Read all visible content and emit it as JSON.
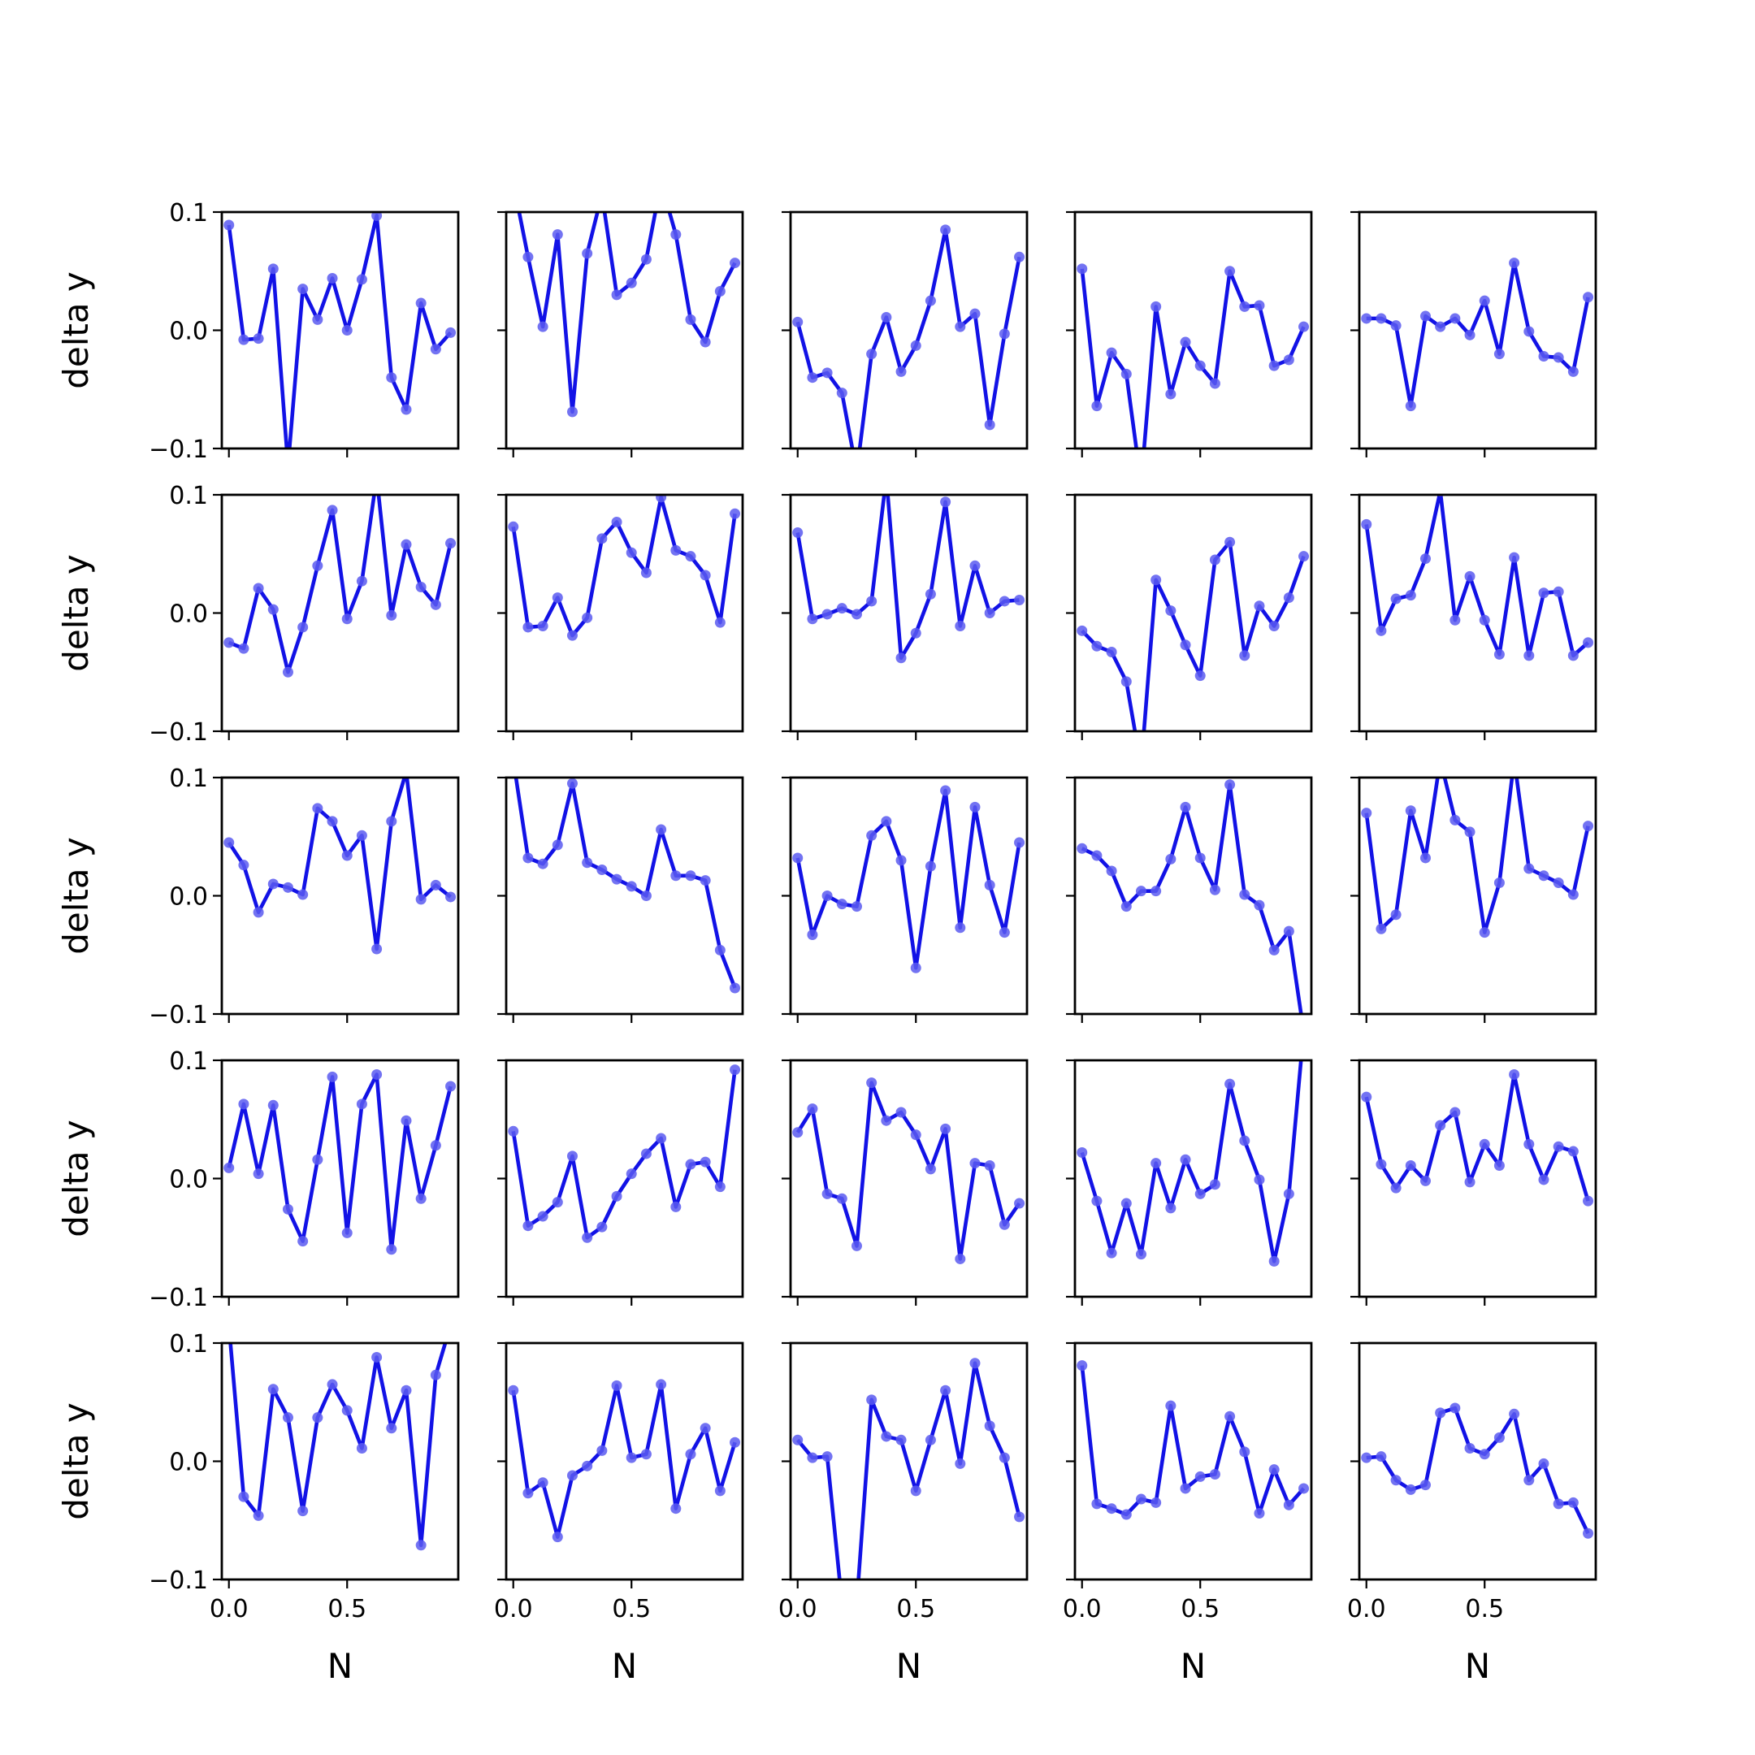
{
  "chart_data": {
    "type": "line",
    "layout": "5x5 grid of subplots",
    "xlabel": "N",
    "ylabel": "delta y",
    "xlim": [
      -0.03,
      0.97
    ],
    "ylim": [
      -0.1,
      0.1
    ],
    "xticks": [
      0.0,
      0.5
    ],
    "xtick_labels": [
      "0.0",
      "0.5"
    ],
    "yticks": [
      -0.1,
      0.0,
      0.1
    ],
    "ytick_labels": [
      "−0.1",
      "0.0",
      "0.1"
    ],
    "grid": false,
    "legend": false,
    "line_color": "#1212e6",
    "marker_color": "#5b5bf0",
    "x": [
      0.0,
      0.0625,
      0.125,
      0.1875,
      0.25,
      0.3125,
      0.375,
      0.4375,
      0.5,
      0.5625,
      0.625,
      0.6875,
      0.75,
      0.8125,
      0.875,
      0.9375
    ],
    "panels": [
      [
        0.089,
        -0.008,
        -0.007,
        0.052,
        -0.115,
        0.035,
        0.009,
        0.044,
        0.0,
        0.043,
        0.097,
        -0.04,
        -0.067,
        0.023,
        -0.016,
        -0.002
      ],
      [
        0.125,
        0.062,
        0.003,
        0.081,
        -0.069,
        0.065,
        0.115,
        0.03,
        0.04,
        0.06,
        0.125,
        0.081,
        0.009,
        -0.01,
        0.033,
        0.057
      ],
      [
        0.007,
        -0.04,
        -0.036,
        -0.053,
        -0.12,
        -0.02,
        0.011,
        -0.035,
        -0.013,
        0.025,
        0.085,
        0.003,
        0.014,
        -0.08,
        -0.003,
        0.062
      ],
      [
        0.052,
        -0.064,
        -0.019,
        -0.037,
        -0.13,
        0.02,
        -0.054,
        -0.01,
        -0.03,
        -0.045,
        0.05,
        0.02,
        0.021,
        -0.03,
        -0.025,
        0.003
      ],
      [
        0.01,
        0.01,
        0.004,
        -0.064,
        0.012,
        0.003,
        0.01,
        -0.004,
        0.025,
        -0.02,
        0.057,
        -0.001,
        -0.022,
        -0.023,
        -0.035,
        0.028
      ],
      [
        -0.025,
        -0.03,
        0.021,
        0.003,
        -0.05,
        -0.012,
        0.04,
        0.087,
        -0.005,
        0.027,
        0.115,
        -0.002,
        0.058,
        0.022,
        0.007,
        0.059
      ],
      [
        0.073,
        -0.012,
        -0.011,
        0.013,
        -0.019,
        -0.004,
        0.063,
        0.077,
        0.051,
        0.034,
        0.098,
        0.053,
        0.048,
        0.032,
        -0.008,
        0.084
      ],
      [
        0.068,
        -0.005,
        -0.001,
        0.004,
        -0.001,
        0.01,
        0.115,
        -0.038,
        -0.017,
        0.016,
        0.094,
        -0.011,
        0.04,
        0.0,
        0.01,
        0.011
      ],
      [
        -0.015,
        -0.028,
        -0.033,
        -0.058,
        -0.13,
        0.028,
        0.002,
        -0.027,
        -0.053,
        0.045,
        0.06,
        -0.036,
        0.006,
        -0.011,
        0.013,
        0.048
      ],
      [
        0.075,
        -0.015,
        0.012,
        0.015,
        0.046,
        0.103,
        -0.006,
        0.031,
        -0.006,
        -0.035,
        0.047,
        -0.036,
        0.017,
        0.018,
        -0.036,
        -0.025
      ],
      [
        0.045,
        0.026,
        -0.014,
        0.01,
        0.007,
        0.001,
        0.074,
        0.063,
        0.034,
        0.051,
        -0.045,
        0.063,
        0.105,
        -0.003,
        0.009,
        -0.001
      ],
      [
        0.115,
        0.032,
        0.027,
        0.043,
        0.095,
        0.028,
        0.022,
        0.014,
        0.008,
        0.0,
        0.056,
        0.017,
        0.017,
        0.013,
        -0.046,
        -0.078
      ],
      [
        0.032,
        -0.033,
        0.0,
        -0.007,
        -0.009,
        0.051,
        0.063,
        0.03,
        -0.061,
        0.025,
        0.089,
        -0.027,
        0.075,
        0.009,
        -0.031,
        0.045
      ],
      [
        0.04,
        0.034,
        0.021,
        -0.009,
        0.004,
        0.004,
        0.031,
        0.075,
        0.032,
        0.005,
        0.094,
        0.001,
        -0.008,
        -0.046,
        -0.03,
        -0.115
      ],
      [
        0.07,
        -0.028,
        -0.016,
        0.072,
        0.032,
        0.115,
        0.064,
        0.054,
        -0.031,
        0.011,
        0.115,
        0.023,
        0.017,
        0.011,
        0.001,
        0.059
      ],
      [
        0.009,
        0.063,
        0.004,
        0.062,
        -0.026,
        -0.053,
        0.016,
        0.086,
        -0.046,
        0.063,
        0.088,
        -0.06,
        0.049,
        -0.017,
        0.028,
        0.078
      ],
      [
        0.04,
        -0.04,
        -0.032,
        -0.02,
        0.019,
        -0.05,
        -0.041,
        -0.015,
        0.004,
        0.021,
        0.034,
        -0.024,
        0.012,
        0.014,
        -0.007,
        0.092
      ],
      [
        0.039,
        0.059,
        -0.013,
        -0.017,
        -0.057,
        0.081,
        0.049,
        0.056,
        0.037,
        0.008,
        0.042,
        -0.068,
        0.013,
        0.011,
        -0.039,
        -0.021
      ],
      [
        0.022,
        -0.019,
        -0.063,
        -0.021,
        -0.064,
        0.013,
        -0.025,
        0.016,
        -0.013,
        -0.005,
        0.08,
        0.032,
        -0.001,
        -0.07,
        -0.013,
        0.125
      ],
      [
        0.069,
        0.012,
        -0.008,
        0.011,
        -0.002,
        0.045,
        0.056,
        -0.003,
        0.029,
        0.011,
        0.088,
        0.029,
        -0.001,
        0.027,
        0.023,
        -0.019
      ],
      [
        0.115,
        -0.03,
        -0.046,
        0.061,
        0.037,
        -0.042,
        0.037,
        0.065,
        0.043,
        0.011,
        0.088,
        0.028,
        0.06,
        -0.071,
        0.073,
        0.115
      ],
      [
        0.06,
        -0.027,
        -0.018,
        -0.064,
        -0.012,
        -0.004,
        0.009,
        0.064,
        0.003,
        0.006,
        0.065,
        -0.04,
        0.006,
        0.028,
        -0.025,
        0.016
      ],
      [
        0.018,
        0.003,
        0.004,
        -0.12,
        -0.12,
        0.052,
        0.021,
        0.018,
        -0.025,
        0.018,
        0.06,
        -0.002,
        0.083,
        0.03,
        0.003,
        -0.047
      ],
      [
        0.081,
        -0.036,
        -0.04,
        -0.045,
        -0.032,
        -0.035,
        0.047,
        -0.023,
        -0.013,
        -0.011,
        0.038,
        0.008,
        -0.044,
        -0.007,
        -0.037,
        -0.023
      ],
      [
        0.003,
        0.004,
        -0.016,
        -0.024,
        -0.02,
        0.041,
        0.045,
        0.011,
        0.006,
        0.02,
        0.04,
        -0.016,
        -0.002,
        -0.036,
        -0.035,
        -0.061
      ]
    ]
  }
}
